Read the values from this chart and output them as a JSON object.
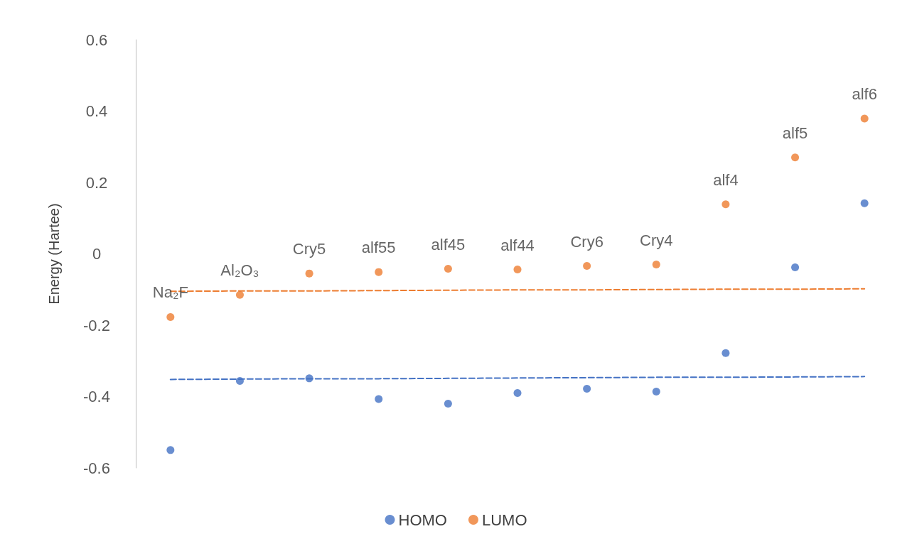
{
  "chart_data": {
    "type": "scatter",
    "ylabel": "Energy (Hartee)",
    "categories": [
      null,
      null,
      null,
      null,
      null,
      null,
      null,
      null,
      null,
      null,
      null
    ],
    "series": [
      {
        "name": "HOMO",
        "color": "#4472c4",
        "values": [
          -0.55,
          -0.356,
          -0.349,
          -0.407,
          -0.42,
          -0.39,
          -0.378,
          -0.386,
          -0.278,
          -0.038,
          0.142
        ]
      },
      {
        "name": "LUMO",
        "color": "#ed7d31",
        "values": [
          -0.177,
          -0.115,
          -0.055,
          -0.051,
          -0.042,
          -0.044,
          -0.034,
          -0.03,
          0.139,
          0.27,
          0.379
        ],
        "value_labels": [
          "Na₂F",
          "Al₂O₃",
          "Cry5",
          "alf55",
          "alf45",
          "alf44",
          "Cry6",
          "Cry4",
          "alf4",
          "alf5",
          "alf6"
        ]
      },
      {
        "type": "line",
        "color": "#4472c4",
        "line_style": "dashed",
        "marker": "none",
        "values": [
          -0.352,
          -0.351,
          -0.35,
          -0.35,
          -0.349,
          -0.348,
          -0.347,
          -0.346,
          -0.346,
          -0.345,
          -0.344
        ]
      },
      {
        "type": "line",
        "color": "#ed7d31",
        "line_style": "dashed",
        "marker": "none",
        "values": [
          -0.105,
          -0.104,
          -0.104,
          -0.103,
          -0.102,
          -0.101,
          -0.101,
          -0.1,
          -0.099,
          -0.099,
          -0.098
        ]
      }
    ],
    "ylim": [
      -0.6,
      0.6
    ],
    "yticks": [
      -0.6,
      -0.4,
      -0.2,
      0,
      0.2,
      0.4,
      0.6
    ],
    "grid": false,
    "legend": "bottom",
    "marker": "circle",
    "tick_labels": "y"
  }
}
